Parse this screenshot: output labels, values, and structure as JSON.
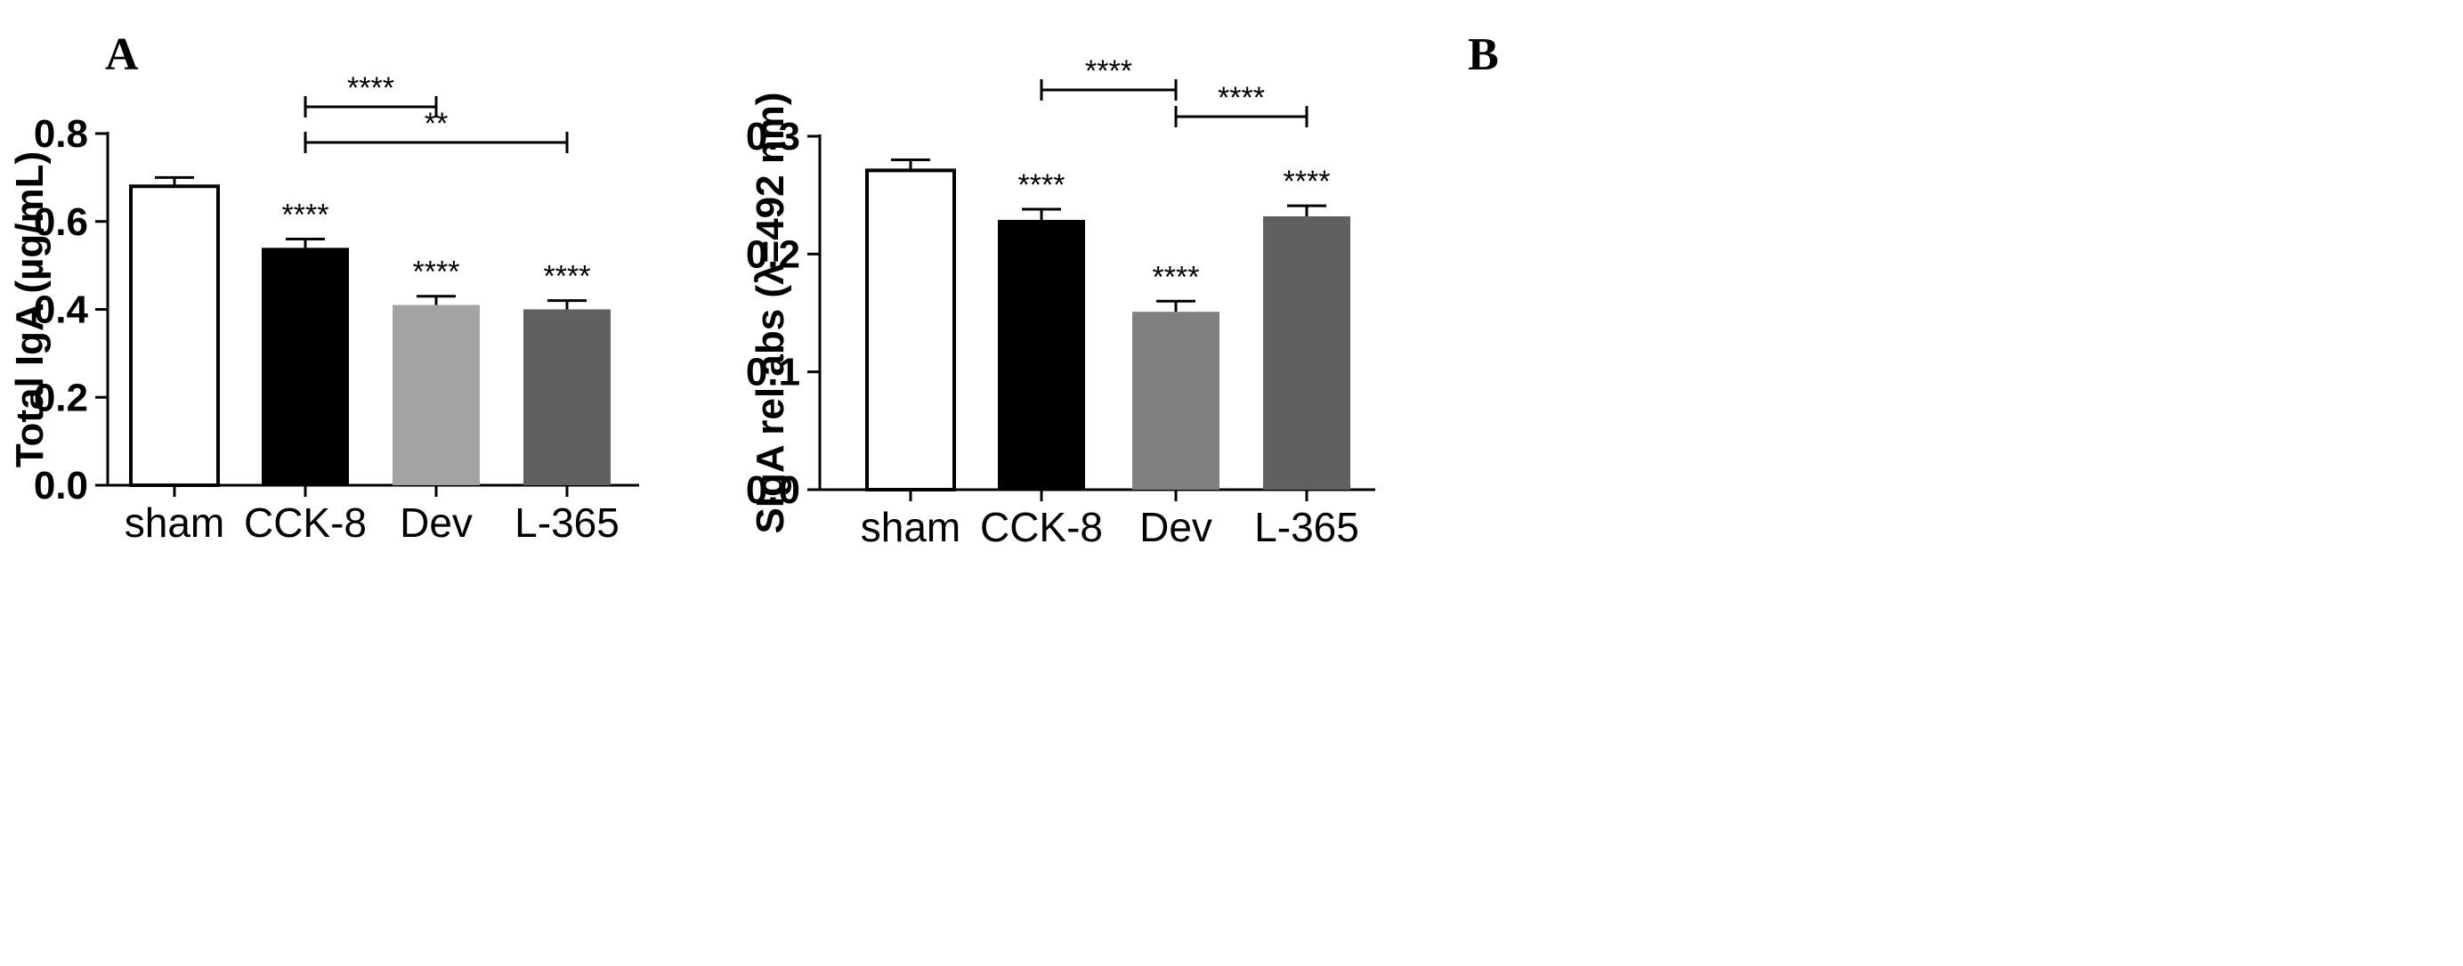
{
  "chart_data": [
    {
      "panel": "A",
      "type": "bar",
      "title": "",
      "xlabel": "",
      "ylabel": "Total IgA (µg/mL)",
      "ylim": [
        0,
        0.8
      ],
      "yticks": [
        0.0,
        0.2,
        0.4,
        0.6,
        0.8
      ],
      "ytick_labels": [
        "0.0",
        "0.2",
        "0.4",
        "0.6",
        "0.8"
      ],
      "categories": [
        "sham",
        "CCK-8",
        "Dev",
        "L-365"
      ],
      "values": [
        0.68,
        0.54,
        0.41,
        0.4
      ],
      "errors": [
        0.02,
        0.02,
        0.02,
        0.02
      ],
      "bar_fills": [
        "#ffffff",
        "#000000",
        "#a3a3a6",
        "#606060"
      ],
      "bar_annotations": [
        "",
        "****",
        "****",
        "****"
      ],
      "comparisons": [
        {
          "from": 1,
          "to": 2,
          "label": "****"
        },
        {
          "from": 1,
          "to": 3,
          "label": "**"
        }
      ]
    },
    {
      "panel": "B",
      "type": "bar",
      "title": "",
      "xlabel": "",
      "ylabel": "SIgA rel abs  (λ=492 nm)",
      "ylim": [
        0,
        0.3
      ],
      "yticks": [
        0.0,
        0.1,
        0.2,
        0.3
      ],
      "ytick_labels": [
        "0.0",
        "0.1",
        "0.2",
        "0.3"
      ],
      "categories": [
        "sham",
        "CCK-8",
        "Dev",
        "L-365"
      ],
      "values": [
        0.271,
        0.229,
        0.151,
        0.232
      ],
      "errors": [
        0.009,
        0.009,
        0.009,
        0.009
      ],
      "bar_fills": [
        "#ffffff",
        "#000000",
        "#808080",
        "#606060"
      ],
      "bar_annotations": [
        "",
        "****",
        "****",
        "****"
      ],
      "comparisons": [
        {
          "from": 1,
          "to": 2,
          "label": "****"
        },
        {
          "from": 2,
          "to": 3,
          "label": "****"
        }
      ]
    }
  ]
}
